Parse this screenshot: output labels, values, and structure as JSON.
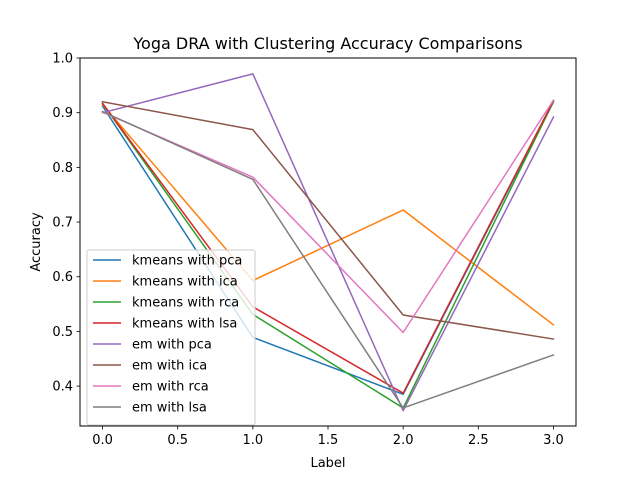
{
  "chart_data": {
    "type": "line",
    "title": "Yoga DRA with Clustering Accuracy Comparisons",
    "xlabel": "Label",
    "ylabel": "Accuracy",
    "xlim": [
      -0.15,
      3.15
    ],
    "ylim": [
      0.327,
      1.0
    ],
    "xticks": [
      0.0,
      0.5,
      1.0,
      1.5,
      2.0,
      2.5,
      3.0
    ],
    "xtick_labels": [
      "0.0",
      "0.5",
      "1.0",
      "1.5",
      "2.0",
      "2.5",
      "3.0"
    ],
    "yticks": [
      0.4,
      0.5,
      0.6,
      0.7,
      0.8,
      0.9,
      1.0
    ],
    "ytick_labels": [
      "0.4",
      "0.5",
      "0.6",
      "0.7",
      "0.8",
      "0.9",
      "1.0"
    ],
    "grid": false,
    "legend_position": "lower-left",
    "x": [
      0,
      1,
      2,
      3
    ],
    "series": [
      {
        "name": "kmeans with pca",
        "color": "#1f77b4",
        "values": [
          0.912,
          0.489,
          0.385,
          0.92
        ]
      },
      {
        "name": "kmeans with ica",
        "color": "#ff7f0e",
        "values": [
          0.915,
          0.593,
          0.722,
          0.512
        ]
      },
      {
        "name": "kmeans with rca",
        "color": "#2ca02c",
        "values": [
          0.917,
          0.531,
          0.36,
          0.92
        ]
      },
      {
        "name": "kmeans with lsa",
        "color": "#d62728",
        "values": [
          0.917,
          0.545,
          0.387,
          0.922
        ]
      },
      {
        "name": "em with pca",
        "color": "#9467bd",
        "values": [
          0.9,
          0.971,
          0.355,
          0.892
        ]
      },
      {
        "name": "em with ica",
        "color": "#8c564b",
        "values": [
          0.92,
          0.869,
          0.53,
          0.486
        ]
      },
      {
        "name": "em with rca",
        "color": "#e377c2",
        "values": [
          0.901,
          0.782,
          0.498,
          0.923
        ]
      },
      {
        "name": "em with lsa",
        "color": "#7f7f7f",
        "values": [
          0.902,
          0.778,
          0.36,
          0.457
        ]
      }
    ]
  }
}
